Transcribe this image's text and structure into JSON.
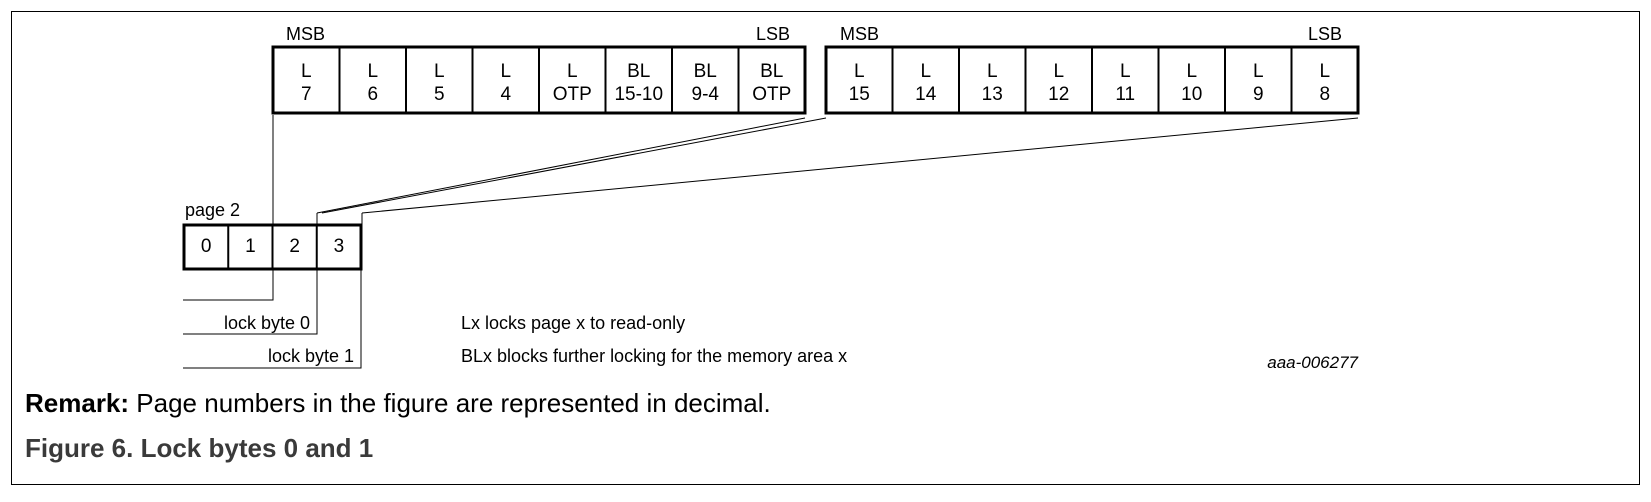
{
  "diagram": {
    "byte_left": {
      "msb_label": "MSB",
      "lsb_label": "LSB",
      "cells": [
        {
          "top": "L",
          "bottom": "7"
        },
        {
          "top": "L",
          "bottom": "6"
        },
        {
          "top": "L",
          "bottom": "5"
        },
        {
          "top": "L",
          "bottom": "4"
        },
        {
          "top": "L",
          "bottom": "OTP"
        },
        {
          "top": "BL",
          "bottom": "15-10"
        },
        {
          "top": "BL",
          "bottom": "9-4"
        },
        {
          "top": "BL",
          "bottom": "OTP"
        }
      ]
    },
    "byte_right": {
      "msb_label": "MSB",
      "lsb_label": "LSB",
      "cells": [
        {
          "top": "L",
          "bottom": "15"
        },
        {
          "top": "L",
          "bottom": "14"
        },
        {
          "top": "L",
          "bottom": "13"
        },
        {
          "top": "L",
          "bottom": "12"
        },
        {
          "top": "L",
          "bottom": "11"
        },
        {
          "top": "L",
          "bottom": "10"
        },
        {
          "top": "L",
          "bottom": "9"
        },
        {
          "top": "L",
          "bottom": "8"
        }
      ]
    },
    "page": {
      "label": "page 2",
      "cells": [
        "0",
        "1",
        "2",
        "3"
      ]
    },
    "lock_byte_0": "lock byte 0",
    "lock_byte_1": "lock byte 1",
    "legend": [
      "Lx locks page x to read-only",
      "BLx blocks further locking for the memory area x"
    ],
    "figure_id": "aaa-006277"
  },
  "remark": {
    "label": "Remark:",
    "text": " Page numbers in the figure are represented in decimal."
  },
  "caption": "Figure 6.  Lock bytes 0 and 1"
}
